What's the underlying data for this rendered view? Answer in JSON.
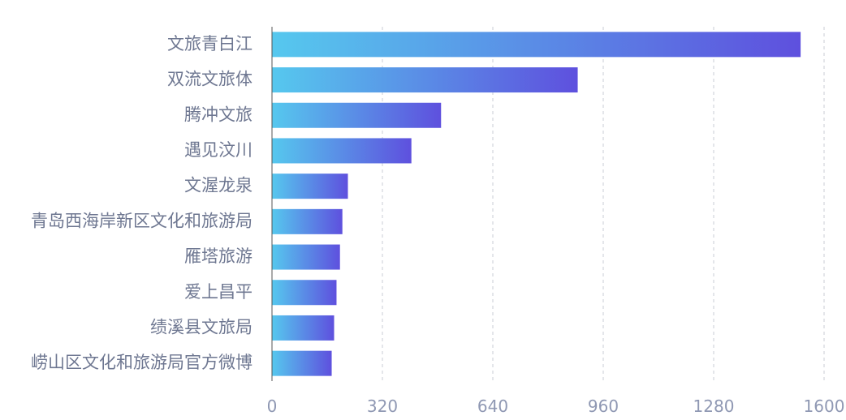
{
  "chart_data": {
    "type": "bar",
    "orientation": "horizontal",
    "title": "",
    "xlabel": "",
    "ylabel": "",
    "categories": [
      "文旅青白江",
      "双流文旅体",
      "腾冲文旅",
      "遇见汶川",
      "文渥龙泉",
      "青岛西海岸新区文化和旅游局",
      "雁塔旅游",
      "爱上昌平",
      "绩溪县文旅局",
      "崂山区文化和旅游局官方微博"
    ],
    "values": [
      1532,
      886,
      490,
      404,
      220,
      204,
      197,
      187,
      180,
      173
    ],
    "xlim": [
      0,
      1600
    ],
    "xticks": [
      "0",
      "320",
      "640",
      "960",
      "1280",
      "1600"
    ],
    "grid": "vertical dashed",
    "legend": "none",
    "colors": {
      "bar_start": "#56c8ee",
      "bar_end": "#5e50de",
      "grid": "#c8ccd6",
      "axis": "#555555",
      "label": "#6e7791",
      "tick": "#8f98b3"
    }
  }
}
